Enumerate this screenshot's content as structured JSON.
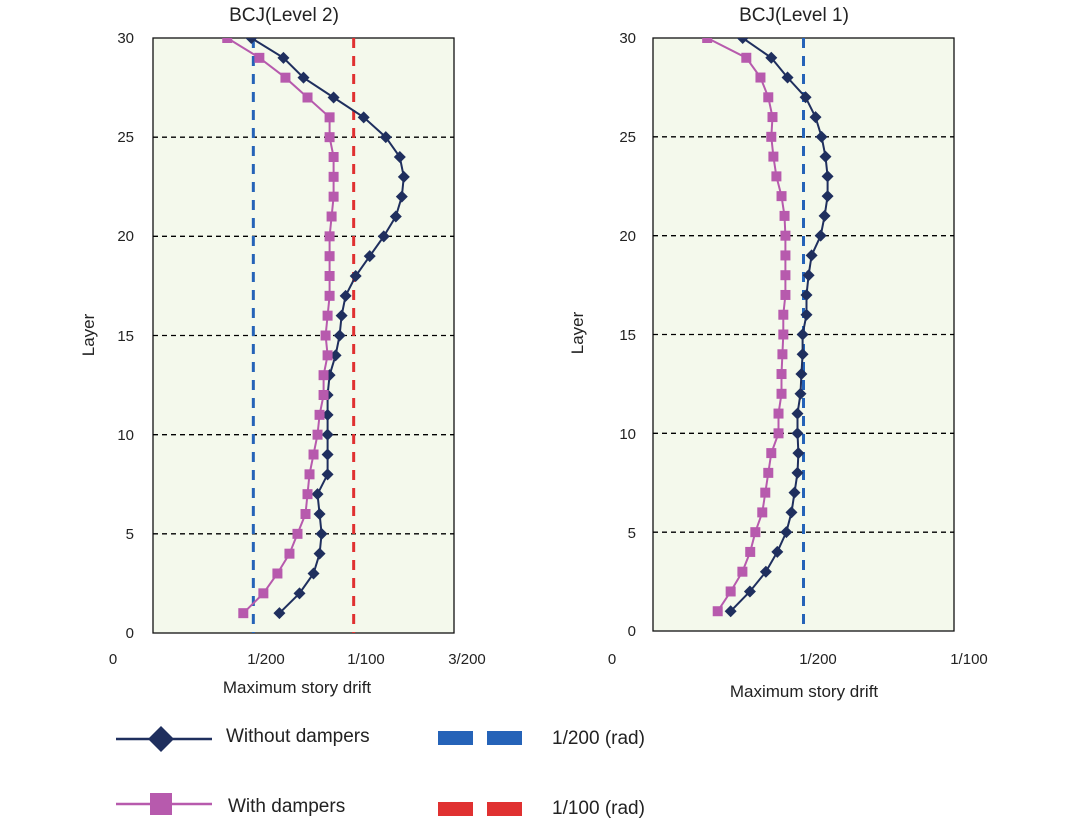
{
  "legend": {
    "without": "Without dampers",
    "with": "With dampers",
    "ref200": "1/200 (rad)",
    "ref100": "1/100 (rad)"
  },
  "colors": {
    "without": "#1f2f5e",
    "with": "#b75aad",
    "ref200": "#2563b8",
    "ref100": "#e03131",
    "plot_bg": "#f4f9ec",
    "grid": "#000000"
  },
  "chart_data": [
    {
      "type": "line",
      "title": "BCJ(Level 2)",
      "xlabel": "Maximum story drift",
      "ylabel": "Layer",
      "xlim": [
        0,
        0.015
      ],
      "ylim": [
        0,
        30
      ],
      "xticks": [
        {
          "value": 0,
          "label": "0"
        },
        {
          "value": 0.005,
          "label": "1/200"
        },
        {
          "value": 0.01,
          "label": "1/100"
        },
        {
          "value": 0.015,
          "label": "3/200"
        }
      ],
      "yticks": [
        0,
        5,
        10,
        15,
        20,
        25,
        30
      ],
      "hgrid": [
        5,
        10,
        15,
        20,
        25
      ],
      "ref_lines": [
        {
          "value": 0.005,
          "name": "1/200 (rad)",
          "color": "#2563b8"
        },
        {
          "value": 0.01,
          "name": "1/100 (rad)",
          "color": "#e03131"
        }
      ],
      "layers": [
        1,
        2,
        3,
        4,
        5,
        6,
        7,
        8,
        9,
        10,
        11,
        12,
        13,
        14,
        15,
        16,
        17,
        18,
        19,
        20,
        21,
        22,
        23,
        24,
        25,
        26,
        27,
        28,
        29,
        30
      ],
      "series": [
        {
          "name": "Without dampers",
          "marker": "diamond",
          "values": [
            0.0063,
            0.0073,
            0.008,
            0.0083,
            0.0084,
            0.0083,
            0.0082,
            0.0087,
            0.0087,
            0.0087,
            0.0087,
            0.0087,
            0.0088,
            0.0091,
            0.0093,
            0.0094,
            0.0096,
            0.0101,
            0.0108,
            0.0115,
            0.0121,
            0.0124,
            0.0125,
            0.0123,
            0.0116,
            0.0105,
            0.009,
            0.0075,
            0.0065,
            0.0049
          ]
        },
        {
          "name": "With dampers",
          "marker": "square",
          "values": [
            0.0045,
            0.0055,
            0.0062,
            0.0068,
            0.0072,
            0.0076,
            0.0077,
            0.0078,
            0.008,
            0.0082,
            0.0083,
            0.0085,
            0.0085,
            0.0087,
            0.0086,
            0.0087,
            0.0088,
            0.0088,
            0.0088,
            0.0088,
            0.0089,
            0.009,
            0.009,
            0.009,
            0.0088,
            0.0088,
            0.0077,
            0.0066,
            0.0053,
            0.0037
          ]
        }
      ]
    },
    {
      "type": "line",
      "title": "BCJ(Level 1)",
      "xlabel": "Maximum story drift",
      "ylabel": "Layer",
      "xlim": [
        0,
        0.01
      ],
      "ylim": [
        0,
        30
      ],
      "xticks": [
        {
          "value": 0,
          "label": "0"
        },
        {
          "value": 0.005,
          "label": "1/200"
        },
        {
          "value": 0.01,
          "label": "1/100"
        }
      ],
      "yticks": [
        0,
        5,
        10,
        15,
        20,
        25,
        30
      ],
      "hgrid": [
        5,
        10,
        15,
        20,
        25
      ],
      "ref_lines": [
        {
          "value": 0.005,
          "name": "1/200 (rad)",
          "color": "#2563b8"
        }
      ],
      "layers": [
        1,
        2,
        3,
        4,
        5,
        6,
        7,
        8,
        9,
        10,
        11,
        12,
        13,
        14,
        15,
        16,
        17,
        18,
        19,
        20,
        21,
        22,
        23,
        24,
        25,
        26,
        27,
        28,
        29,
        30
      ],
      "series": [
        {
          "name": "Without dampers",
          "marker": "diamond",
          "values": [
            0.00258,
            0.00322,
            0.00375,
            0.00413,
            0.00443,
            0.0046,
            0.0047,
            0.0048,
            0.00483,
            0.0048,
            0.0048,
            0.0049,
            0.00493,
            0.00497,
            0.00497,
            0.0051,
            0.0051,
            0.00517,
            0.00527,
            0.00557,
            0.0057,
            0.0058,
            0.0058,
            0.00573,
            0.0056,
            0.0054,
            0.00507,
            0.00447,
            0.00393,
            0.00298
          ]
        },
        {
          "name": "With dampers",
          "marker": "square",
          "values": [
            0.00215,
            0.00258,
            0.00297,
            0.00323,
            0.0034,
            0.00363,
            0.00373,
            0.00383,
            0.00393,
            0.00417,
            0.00417,
            0.00427,
            0.00427,
            0.0043,
            0.00433,
            0.00433,
            0.0044,
            0.0044,
            0.0044,
            0.0044,
            0.00437,
            0.00427,
            0.0041,
            0.004,
            0.00393,
            0.00397,
            0.00383,
            0.00357,
            0.0031,
            0.0018
          ]
        }
      ]
    }
  ]
}
